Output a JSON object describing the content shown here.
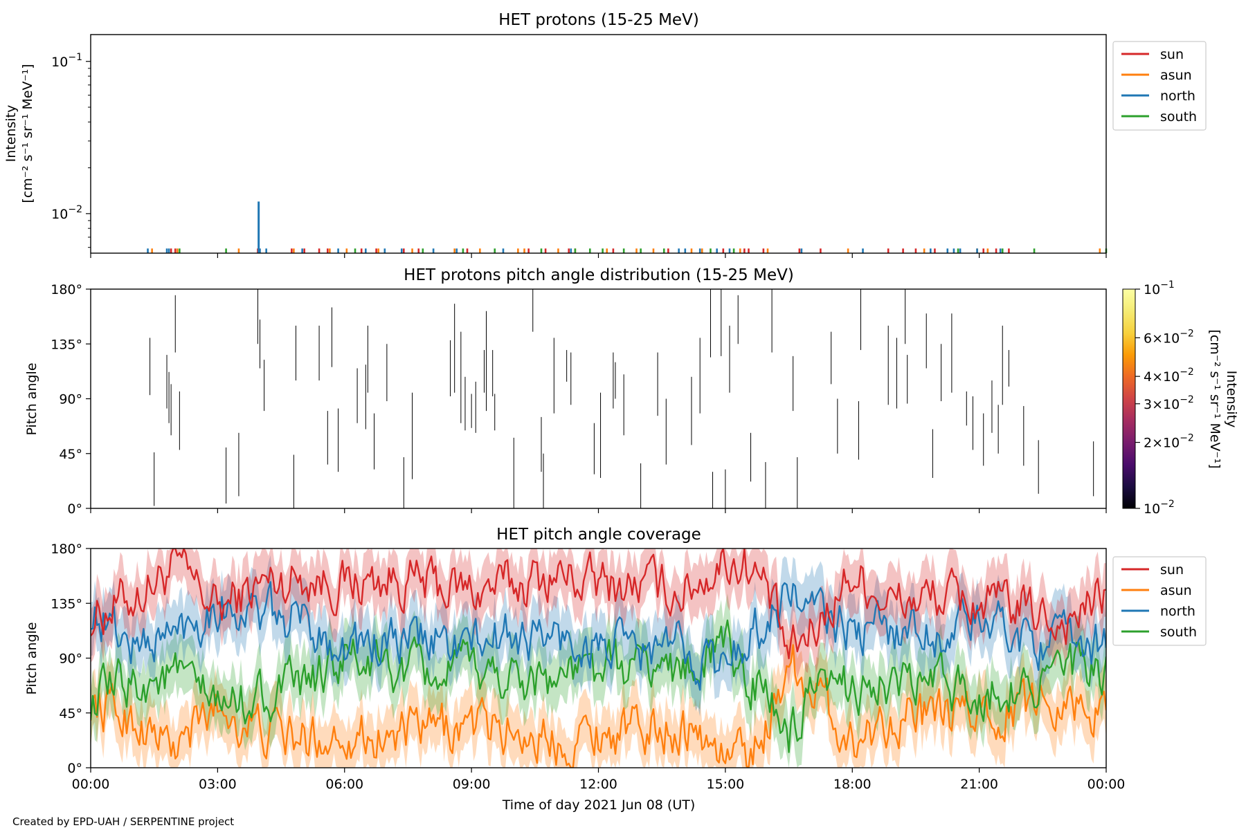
{
  "footer": "Created by EPD-UAH / SERPENTINE project",
  "xlabel": "Time of day 2021 Jun 08 (UT)",
  "time_ticks": [
    "00:00",
    "03:00",
    "06:00",
    "09:00",
    "12:00",
    "15:00",
    "18:00",
    "21:00",
    "00:00"
  ],
  "colors": {
    "sun": "#d62728",
    "asun": "#ff7f0e",
    "north": "#1f77b4",
    "south": "#2ca02c"
  },
  "chart_data": [
    {
      "type": "line",
      "title": "HET protons (15-25 MeV)",
      "ylabel_line1": "Intensity",
      "ylabel_line2": "[cm⁻² s⁻¹ sr⁻¹ MeV⁻¹]",
      "yscale": "log",
      "xlim_hours": [
        0,
        24
      ],
      "ylim": [
        0.0055,
        0.15
      ],
      "yticks": [
        {
          "value": 0.1,
          "base": "10",
          "exp": "−1"
        },
        {
          "value": 0.01,
          "base": "10",
          "exp": "−2"
        }
      ],
      "legend": [
        "sun",
        "asun",
        "north",
        "south"
      ],
      "legend_placement": "outside-right",
      "baseline": 0.0055,
      "series": [
        {
          "name": "sun",
          "spike_value": 0.0059,
          "hours": [
            1.9,
            2.0,
            3.95,
            4.75,
            5.05,
            5.4,
            5.6,
            6.4,
            6.75,
            7.4,
            7.75,
            8.9,
            10.35,
            10.75,
            11.3,
            12.35,
            13.65,
            14.95,
            15.45,
            15.55,
            15.9,
            16.75,
            17.25,
            18.85,
            19.2,
            19.5,
            19.95,
            21.1,
            21.4,
            21.7
          ]
        },
        {
          "name": "asun",
          "spike_value": 0.0059,
          "hours": [
            1.45,
            2.05,
            3.5,
            4.8,
            5.65,
            6.05,
            6.8,
            7.6,
            8.6,
            9.2,
            10.1,
            10.25,
            11.05,
            11.45,
            12.2,
            12.9,
            13.3,
            14.2,
            14.45,
            15.35,
            16.0,
            17.9,
            19.7,
            20.95,
            21.2,
            23.85
          ]
        },
        {
          "name": "north",
          "spike_value": 0.0059,
          "hours": [
            1.35,
            1.8,
            1.85,
            4.0,
            4.15,
            5.0,
            5.85,
            6.5,
            6.95,
            7.35,
            8.1,
            8.65,
            9.75,
            11.35,
            13.9,
            14.05,
            14.4,
            14.8,
            15.1,
            16.8,
            18.25,
            19.85,
            20.25,
            20.4,
            20.55,
            20.95,
            21.5
          ]
        },
        {
          "name": "south",
          "spike_value": 0.0059,
          "hours": [
            2.1,
            3.2,
            6.25,
            7.85,
            8.8,
            9.55,
            10.65,
            11.45,
            11.8,
            12.1,
            12.6,
            13.0,
            13.55,
            14.65,
            15.2,
            20.5,
            21.55,
            22.3,
            24.0
          ]
        },
        {
          "name": "north",
          "spike_hour": 3.97,
          "spike_value": 0.012
        }
      ]
    },
    {
      "type": "heatmap",
      "title": "HET protons pitch angle distribution (15-25 MeV)",
      "ylabel": "Pitch angle",
      "xlim_hours": [
        0,
        24
      ],
      "ylim": [
        0,
        180
      ],
      "yticks": [
        "0°",
        "45°",
        "90°",
        "135°",
        "180°"
      ],
      "colorbar": {
        "scale": "log",
        "range": [
          0.01,
          0.1
        ],
        "label": "Intensity",
        "label_units": "[cm⁻² s⁻¹ sr⁻¹ MeV⁻¹]",
        "ticks": [
          {
            "value": 0.1,
            "mant": "",
            "base": "10",
            "exp": "−1"
          },
          {
            "value": 0.06,
            "mant": "6×",
            "base": "10",
            "exp": "−2"
          },
          {
            "value": 0.04,
            "mant": "4×",
            "base": "10",
            "exp": "−2"
          },
          {
            "value": 0.03,
            "mant": "3×",
            "base": "10",
            "exp": "−2"
          },
          {
            "value": 0.02,
            "mant": "2×",
            "base": "10",
            "exp": "−2"
          },
          {
            "value": 0.01,
            "mant": "",
            "base": "10",
            "exp": "−2"
          }
        ]
      },
      "segments": [
        [
          1.4,
          93,
          140
        ],
        [
          1.5,
          2,
          46
        ],
        [
          1.8,
          82,
          126
        ],
        [
          1.85,
          70,
          112
        ],
        [
          1.9,
          60,
          102
        ],
        [
          2.0,
          128,
          175
        ],
        [
          2.1,
          48,
          96
        ],
        [
          3.2,
          4,
          50
        ],
        [
          3.5,
          10,
          62
        ],
        [
          3.95,
          135,
          180
        ],
        [
          4.0,
          115,
          155
        ],
        [
          4.1,
          80,
          122
        ],
        [
          4.8,
          0,
          44
        ],
        [
          4.85,
          105,
          150
        ],
        [
          5.4,
          105,
          150
        ],
        [
          5.6,
          36,
          80
        ],
        [
          5.7,
          116,
          165
        ],
        [
          5.85,
          30,
          82
        ],
        [
          6.3,
          70,
          115
        ],
        [
          6.5,
          65,
          118
        ],
        [
          6.55,
          95,
          150
        ],
        [
          6.7,
          32,
          78
        ],
        [
          7.0,
          88,
          135
        ],
        [
          7.4,
          0,
          42
        ],
        [
          7.6,
          24,
          95
        ],
        [
          8.5,
          92,
          138
        ],
        [
          8.6,
          95,
          168
        ],
        [
          8.75,
          70,
          145
        ],
        [
          8.85,
          64,
          108
        ],
        [
          9.0,
          66,
          94
        ],
        [
          9.1,
          62,
          104
        ],
        [
          9.3,
          95,
          130
        ],
        [
          9.35,
          80,
          162
        ],
        [
          9.5,
          92,
          130
        ],
        [
          9.55,
          64,
          94
        ],
        [
          10.0,
          0,
          58
        ],
        [
          10.45,
          145,
          180
        ],
        [
          10.65,
          30,
          75
        ],
        [
          10.7,
          0,
          45
        ],
        [
          10.95,
          78,
          140
        ],
        [
          11.25,
          104,
          130
        ],
        [
          11.35,
          85,
          128
        ],
        [
          11.9,
          28,
          70
        ],
        [
          12.05,
          25,
          95
        ],
        [
          12.35,
          82,
          128
        ],
        [
          12.4,
          90,
          120
        ],
        [
          12.6,
          60,
          110
        ],
        [
          13.0,
          0,
          37
        ],
        [
          13.4,
          76,
          128
        ],
        [
          13.6,
          36,
          90
        ],
        [
          14.2,
          52,
          108
        ],
        [
          14.4,
          78,
          140
        ],
        [
          14.65,
          124,
          180
        ],
        [
          14.7,
          0,
          30
        ],
        [
          14.9,
          125,
          180
        ],
        [
          15.0,
          0,
          32
        ],
        [
          15.1,
          95,
          150
        ],
        [
          15.3,
          135,
          175
        ],
        [
          15.6,
          22,
          62
        ],
        [
          15.95,
          0,
          38
        ],
        [
          16.1,
          128,
          180
        ],
        [
          16.6,
          80,
          125
        ],
        [
          16.7,
          0,
          42
        ],
        [
          17.5,
          102,
          145
        ],
        [
          17.65,
          45,
          90
        ],
        [
          18.15,
          40,
          88
        ],
        [
          18.2,
          130,
          180
        ],
        [
          18.85,
          85,
          150
        ],
        [
          19.05,
          82,
          140
        ],
        [
          19.25,
          135,
          180
        ],
        [
          19.3,
          86,
          126
        ],
        [
          19.75,
          115,
          160
        ],
        [
          19.9,
          25,
          65
        ],
        [
          20.1,
          88,
          135
        ],
        [
          20.35,
          95,
          160
        ],
        [
          20.7,
          68,
          96
        ],
        [
          20.85,
          48,
          92
        ],
        [
          21.1,
          35,
          78
        ],
        [
          21.3,
          62,
          105
        ],
        [
          21.45,
          45,
          85
        ],
        [
          21.55,
          85,
          150
        ],
        [
          21.7,
          100,
          130
        ],
        [
          22.05,
          35,
          84
        ],
        [
          22.4,
          12,
          56
        ],
        [
          23.7,
          10,
          55
        ],
        [
          24.0,
          50,
          100
        ]
      ]
    },
    {
      "type": "line",
      "title": "HET pitch angle coverage",
      "ylabel": "Pitch angle",
      "xlim_hours": [
        0,
        24
      ],
      "ylim": [
        0,
        180
      ],
      "yticks": [
        "0°",
        "45°",
        "90°",
        "135°",
        "180°"
      ],
      "legend": [
        "sun",
        "asun",
        "north",
        "south"
      ],
      "legend_placement": "outside-right",
      "band_halfwidth_deg": 22,
      "series": [
        {
          "name": "sun",
          "hours": [
            0,
            1,
            2,
            3,
            4,
            5,
            6,
            7,
            8,
            9,
            10,
            11,
            12,
            13,
            14,
            15,
            15.5,
            16,
            16.5,
            17,
            18,
            19,
            20,
            21,
            22,
            23,
            24
          ],
          "values": [
            125,
            140,
            165,
            130,
            150,
            158,
            150,
            155,
            150,
            145,
            150,
            158,
            150,
            150,
            145,
            170,
            168,
            145,
            90,
            110,
            160,
            135,
            140,
            135,
            130,
            120,
            140
          ]
        },
        {
          "name": "asun",
          "hours": [
            0,
            1,
            2,
            3,
            4,
            5,
            6,
            7,
            8,
            9,
            10,
            11,
            12,
            13,
            14,
            15,
            15.5,
            16,
            16.5,
            17,
            18,
            19,
            20,
            21,
            22,
            23,
            24
          ],
          "values": [
            55,
            40,
            15,
            50,
            30,
            22,
            30,
            25,
            30,
            35,
            30,
            22,
            30,
            30,
            35,
            10,
            12,
            35,
            90,
            70,
            20,
            45,
            40,
            45,
            50,
            60,
            40
          ]
        },
        {
          "name": "north",
          "hours": [
            0,
            1,
            2,
            3,
            4,
            5,
            6,
            7,
            8,
            9,
            10,
            11,
            12,
            13,
            14,
            15,
            15.5,
            16,
            16.5,
            17,
            18,
            19,
            20,
            21,
            22,
            23,
            24
          ],
          "values": [
            130,
            100,
            110,
            135,
            125,
            120,
            100,
            100,
            105,
            100,
            110,
            105,
            100,
            95,
            100,
            80,
            110,
            120,
            145,
            130,
            110,
            115,
            110,
            120,
            110,
            100,
            105
          ]
        },
        {
          "name": "south",
          "hours": [
            0,
            1,
            2,
            3,
            4,
            5,
            6,
            7,
            8,
            9,
            10,
            11,
            12,
            13,
            14,
            15,
            15.5,
            16,
            16.5,
            17,
            18,
            19,
            20,
            21,
            22,
            23,
            24
          ],
          "values": [
            55,
            70,
            75,
            50,
            60,
            65,
            90,
            80,
            75,
            80,
            75,
            75,
            80,
            85,
            80,
            100,
            75,
            60,
            25,
            50,
            70,
            65,
            70,
            60,
            70,
            80,
            75
          ]
        }
      ]
    }
  ]
}
